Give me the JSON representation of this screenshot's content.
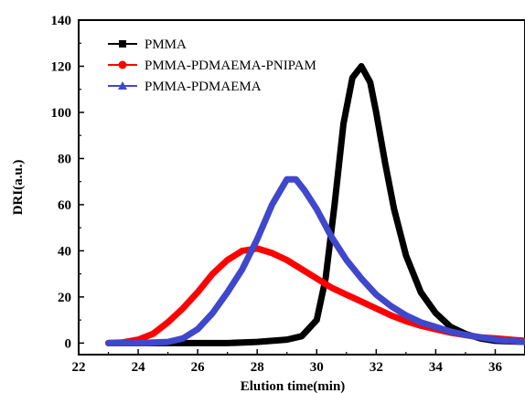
{
  "chart_data": {
    "type": "line",
    "xlabel": "Elution time(min)",
    "ylabel": "DRI(a.u.)",
    "xlim": [
      22,
      37
    ],
    "ylim": [
      -5,
      140
    ],
    "xticks": [
      22,
      24,
      26,
      28,
      30,
      32,
      34,
      36
    ],
    "yticks": [
      0,
      20,
      40,
      60,
      80,
      100,
      120,
      140
    ],
    "grid": false,
    "legend_position": "top-left",
    "series": [
      {
        "name": "PMMA",
        "color": "#000000",
        "marker": "square",
        "x": [
          23,
          24,
          25,
          26,
          27,
          28,
          28.5,
          29,
          29.5,
          30,
          30.3,
          30.6,
          30.9,
          31.2,
          31.5,
          31.8,
          32,
          32.3,
          32.6,
          33,
          33.5,
          34,
          34.5,
          35,
          35.5,
          36,
          37
        ],
        "y": [
          0,
          0,
          0,
          0,
          0,
          0.5,
          1,
          1.5,
          3,
          10,
          28,
          60,
          95,
          115,
          120,
          113,
          100,
          78,
          58,
          38,
          22,
          13,
          7,
          4,
          2,
          1,
          0.5
        ]
      },
      {
        "name": "PMMA-PDMAEMA-PNIPAM",
        "color": "#ff0000",
        "marker": "circle",
        "x": [
          23,
          23.5,
          24,
          24.5,
          25,
          25.5,
          26,
          26.5,
          27,
          27.5,
          28,
          28.5,
          29,
          29.5,
          30,
          30.5,
          31,
          31.5,
          32,
          32.5,
          33,
          33.5,
          34,
          34.5,
          35,
          35.5,
          36,
          36.5,
          37
        ],
        "y": [
          0,
          0.3,
          1.5,
          4,
          9,
          15,
          22,
          30,
          36,
          40,
          41,
          39,
          36,
          32,
          28,
          24,
          21,
          18,
          15,
          12,
          9.5,
          7.5,
          6,
          4.5,
          3.5,
          2.5,
          2,
          1.5,
          1
        ]
      },
      {
        "name": "PMMA-PDMAEMA",
        "color": "#3f48cc",
        "marker": "triangle",
        "x": [
          23,
          24,
          25,
          25.5,
          26,
          26.5,
          27,
          27.5,
          28,
          28.5,
          29,
          29.3,
          29.6,
          30,
          30.5,
          31,
          31.5,
          32,
          32.5,
          33,
          33.5,
          34,
          34.5,
          35,
          35.5,
          36,
          36.5,
          37
        ],
        "y": [
          0,
          0,
          0.5,
          2,
          6,
          13,
          22,
          32,
          45,
          60,
          71,
          71,
          66,
          58,
          46,
          36,
          28,
          21,
          16,
          12,
          9,
          7,
          5,
          3.5,
          2.5,
          1.5,
          1,
          0.5
        ]
      }
    ]
  }
}
